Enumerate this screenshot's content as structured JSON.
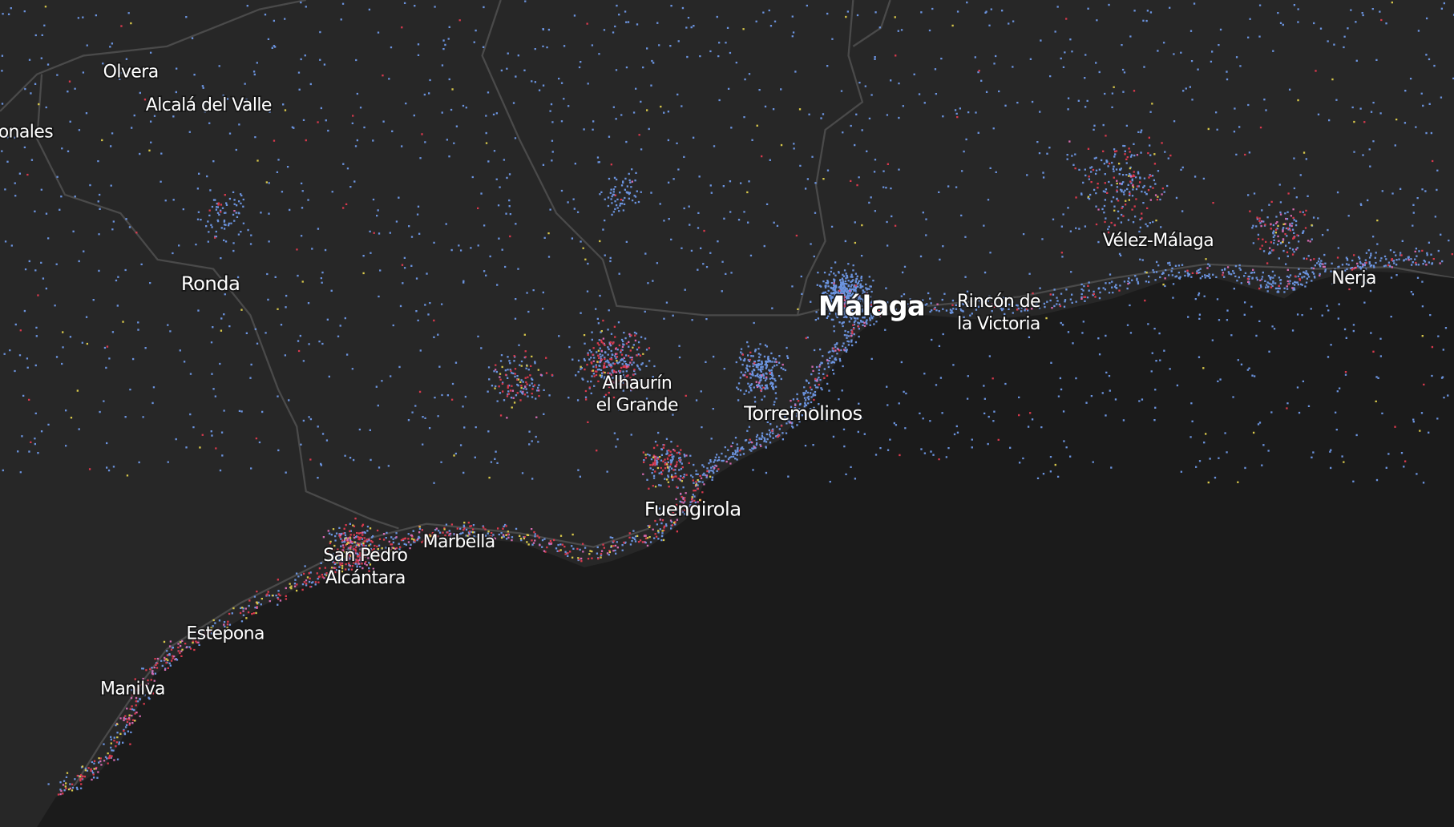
{
  "labels": {
    "olvera": "Olvera",
    "alcala": "Alcalá del Valle",
    "onales": "onales",
    "ronda": "Ronda",
    "malaga": "Málaga",
    "rincon": [
      "Rincón de",
      "la Victoria"
    ],
    "velez": "Vélez-Málaga",
    "nerja": "Nerja",
    "alhaurin": [
      "Alhaurín",
      "el Grande"
    ],
    "torremolinos": "Torremolinos",
    "fuengirola": "Fuengirola",
    "marbella": "Marbella",
    "sanpedro": [
      "San Pedro",
      "Alcántara"
    ],
    "estepona": "Estepona",
    "manilva": "Manilva"
  }
}
